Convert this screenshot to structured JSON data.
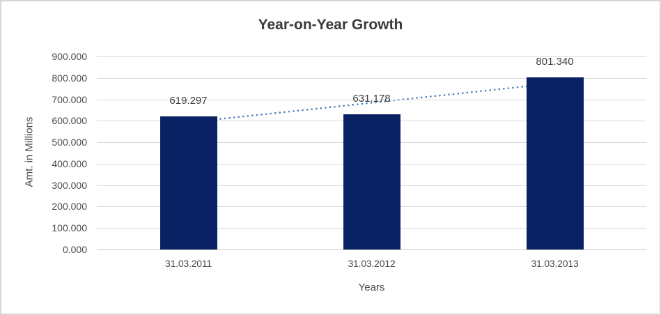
{
  "chart": {
    "colors": {
      "bar": "#0a2264",
      "trendline": "#4a7ebc",
      "gridline": "#d9d9d9",
      "axis_line": "#c8c8c8",
      "title_text": "#3a3a3a",
      "tick_text": "#4a4a4a",
      "label_text": "#3d3d3d",
      "frame_border": "#d6d6d6"
    }
  },
  "chart_data": {
    "type": "bar",
    "title": "Year-on-Year Growth",
    "xlabel": "Years",
    "ylabel": "Amt. in Millions",
    "categories": [
      "31.03.2011",
      "31.03.2012",
      "31.03.2013"
    ],
    "values": [
      619.297,
      631.178,
      801.34
    ],
    "data_labels": [
      "619.297",
      "631.178",
      "801.340"
    ],
    "ylim": [
      0,
      900
    ],
    "ytick_step": 100,
    "ytick_labels_top_to_bottom": [
      "900.000",
      "800.000",
      "700.000",
      "600.000",
      "500.000",
      "400.000",
      "300.000",
      "200.000",
      "100.000",
      "0.000"
    ],
    "grid": true,
    "legend": false,
    "trendline": {
      "type": "linear",
      "style": "dotted"
    }
  }
}
